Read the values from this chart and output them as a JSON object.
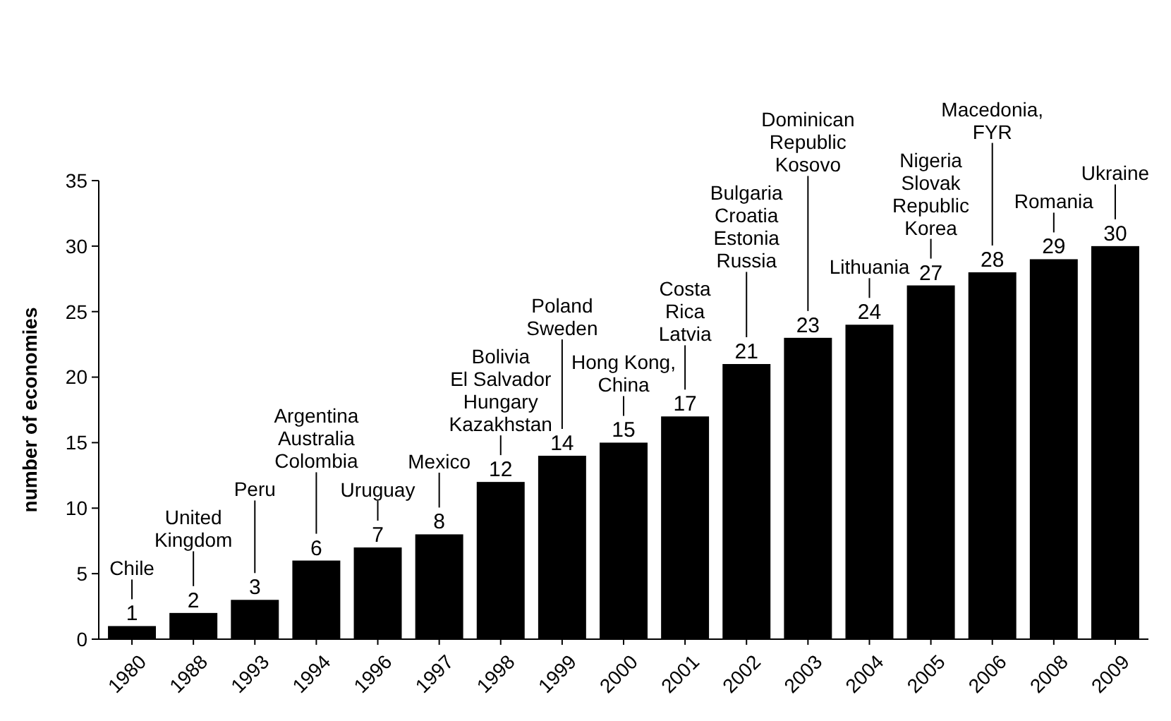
{
  "chart_data": {
    "type": "bar",
    "ylabel": "number of economies",
    "categories": [
      "1980",
      "1988",
      "1993",
      "1994",
      "1996",
      "1997",
      "1998",
      "1999",
      "2000",
      "2001",
      "2002",
      "2003",
      "2004",
      "2005",
      "2006",
      "2008",
      "2009"
    ],
    "values": [
      1,
      2,
      3,
      6,
      7,
      8,
      12,
      14,
      15,
      17,
      21,
      23,
      24,
      27,
      28,
      29,
      30
    ],
    "color": "#000000",
    "ylim": [
      0,
      35
    ],
    "yticks": [
      0,
      5,
      10,
      15,
      20,
      25,
      30,
      35
    ],
    "data_labels": true,
    "grid": false,
    "annotations": [
      "Chile",
      "United\nKingdom",
      "Peru",
      "Argentina\nAustralia\nColombia",
      "Uruguay",
      "Mexico",
      "Bolivia\nEl Salvador\nHungary\nKazakhstan",
      "Poland\nSweden",
      "Hong Kong,\nChina",
      "Costa\nRica\nLatvia",
      "Bulgaria\nCroatia\nEstonia\nRussia",
      "Dominican\nRepublic\nKosovo",
      "Lithuania",
      "Nigeria\nSlovak\nRepublic\nKorea",
      "Macedonia,\nFYR",
      "Romania",
      "Ukraine"
    ]
  }
}
